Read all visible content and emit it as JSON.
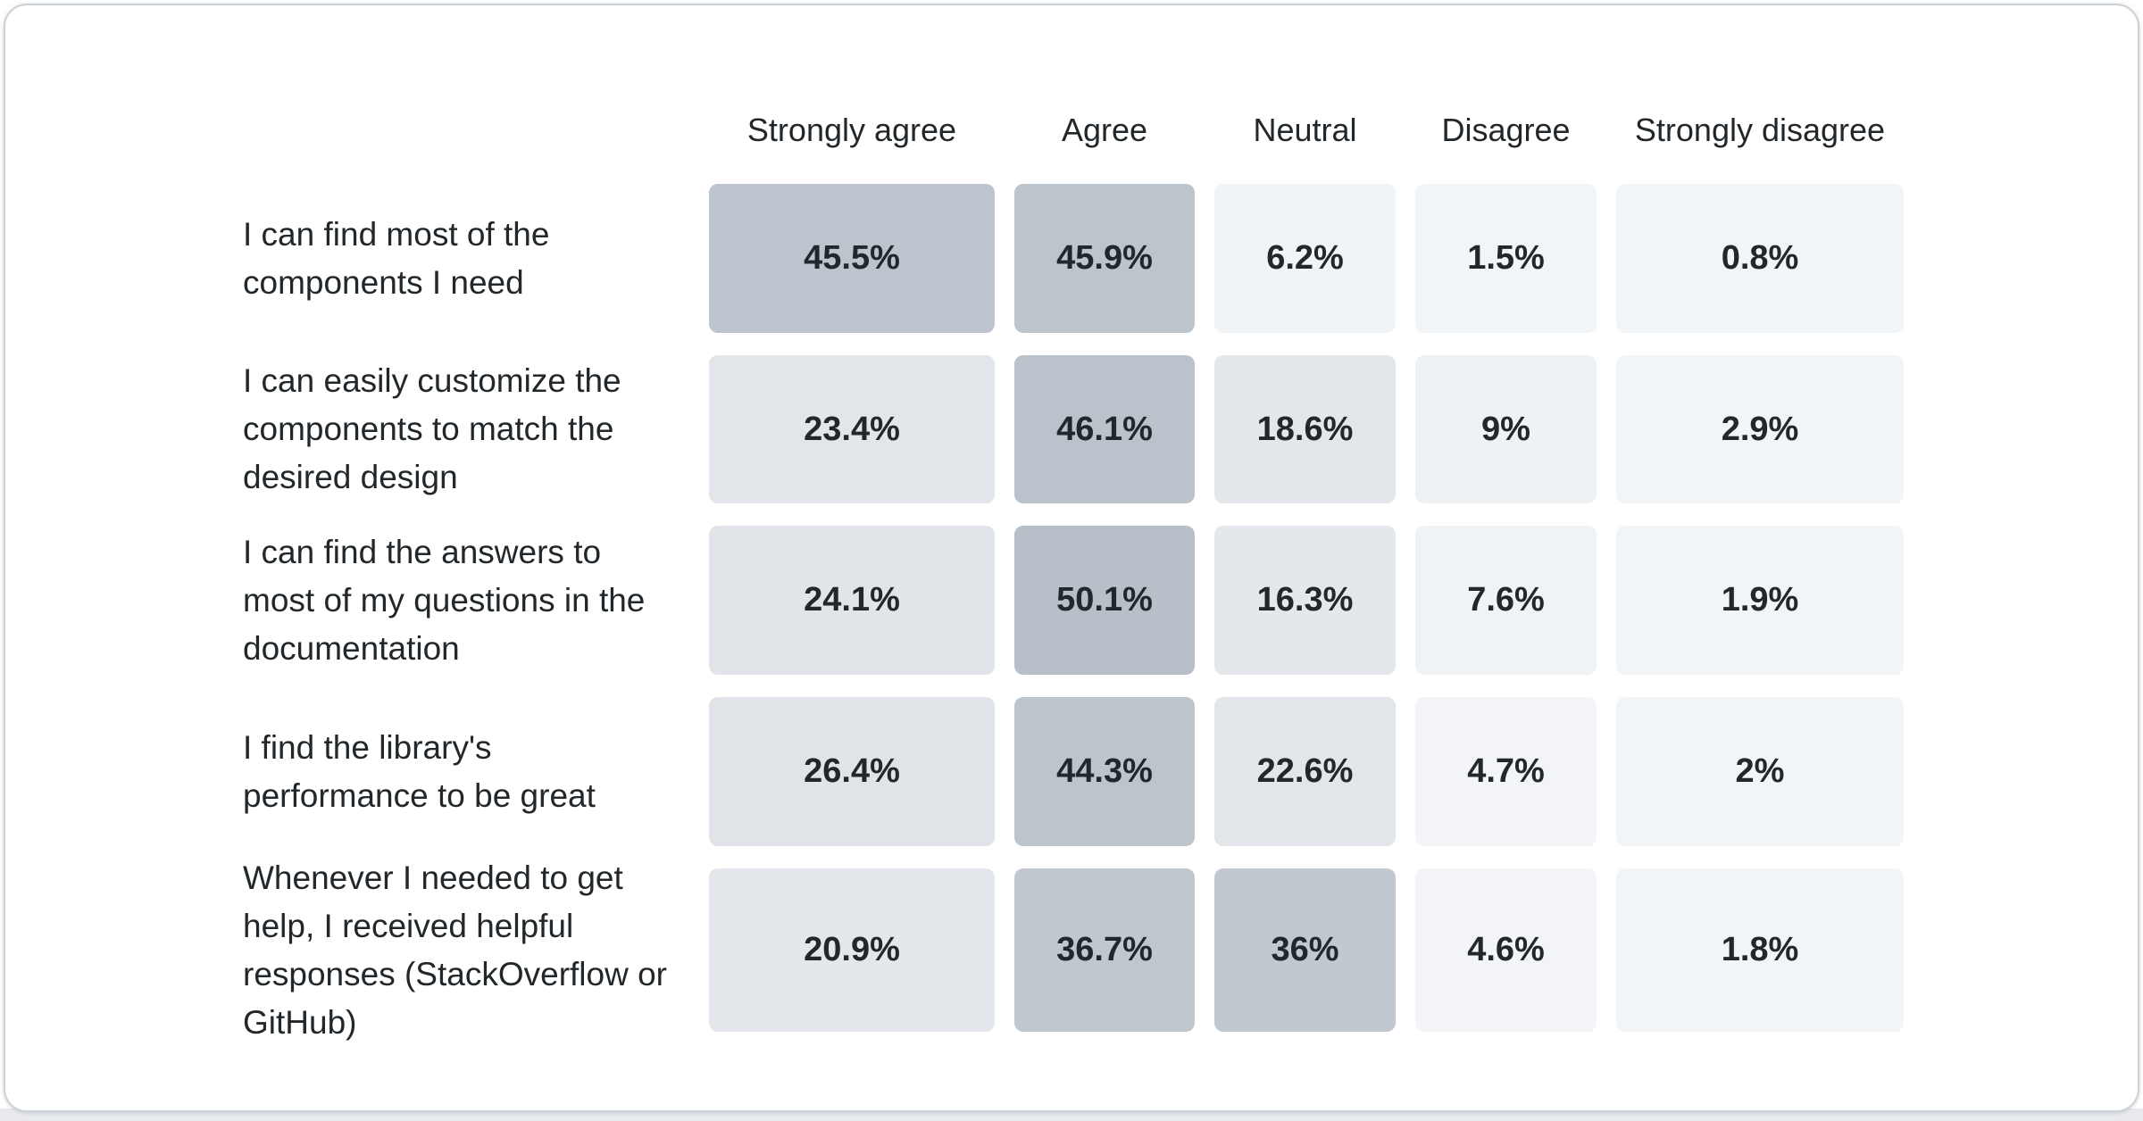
{
  "page": {
    "background_color": "#ffffff",
    "card_border_color": "#ccd2d8",
    "bottom_strip_color": "#e8eaed"
  },
  "chart_data": {
    "type": "heatmap",
    "title": "",
    "legend_position": "none",
    "grid": false,
    "value_unit": "percent",
    "color_scale": {
      "high": "#bcc4cc",
      "mid": "#e2e6eb",
      "low": "#f2f5f8",
      "text": "#21272a"
    },
    "columns": [
      "Strongly agree",
      "Agree",
      "Neutral",
      "Disagree",
      "Strongly disagree"
    ],
    "rows": [
      {
        "label": "I can find most of the components I need",
        "values": [
          "45.5%",
          "45.9%",
          "6.2%",
          "1.5%",
          "0.8%"
        ],
        "values_numeric": [
          45.5,
          45.9,
          6.2,
          1.5,
          0.8
        ],
        "colors": [
          "#bdc4cd",
          "#bcc4cc",
          "#f1f4f7",
          "#f2f5f8",
          "#f2f5f8"
        ]
      },
      {
        "label": "I can easily customize the components to match the desired design",
        "values": [
          "23.4%",
          "46.1%",
          "18.6%",
          "9%",
          "2.9%"
        ],
        "values_numeric": [
          23.4,
          46.1,
          18.6,
          9,
          2.9
        ],
        "colors": [
          "#e2e6eb",
          "#bac2cb",
          "#e3e7ec",
          "#eff2f5",
          "#f2f5f8"
        ]
      },
      {
        "label": "I can find the answers to most of my questions in the documentation",
        "values": [
          "24.1%",
          "50.1%",
          "16.3%",
          "7.6%",
          "1.9%"
        ],
        "values_numeric": [
          24.1,
          50.1,
          16.3,
          7.6,
          1.9
        ],
        "colors": [
          "#e1e5ea",
          "#b7bfc8",
          "#e4e8ec",
          "#f0f3f6",
          "#f2f5f8"
        ]
      },
      {
        "label": "I find the library's performance to be great",
        "values": [
          "26.4%",
          "44.3%",
          "22.6%",
          "4.7%",
          "2%"
        ],
        "values_numeric": [
          26.4,
          44.3,
          22.6,
          4.7,
          2
        ],
        "colors": [
          "#e0e4e9",
          "#bcc4cc",
          "#e2e6eb",
          "#f2f4f7",
          "#f2f5f8"
        ]
      },
      {
        "label": "Whenever I needed to get help, I received helpful responses (StackOverflow or GitHub)",
        "values": [
          "20.9%",
          "36.7%",
          "36%",
          "4.6%",
          "1.8%"
        ],
        "values_numeric": [
          20.9,
          36.7,
          36,
          4.6,
          1.8
        ],
        "colors": [
          "#e3e7ec",
          "#c0c7cf",
          "#c1c8cf",
          "#f2f4f7",
          "#f2f5f8"
        ]
      }
    ]
  }
}
